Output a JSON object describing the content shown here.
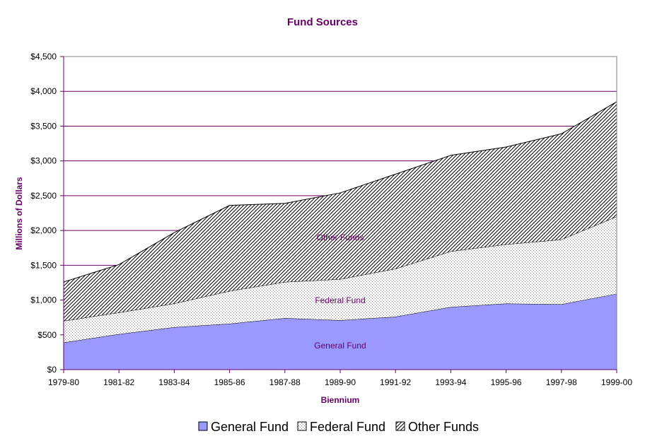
{
  "chart_data": {
    "type": "area",
    "stacked": true,
    "title": "Fund Sources",
    "xlabel": "Biennium",
    "ylabel": "Millions of Dollars",
    "categories": [
      "1979-80",
      "1981-82",
      "1983-84",
      "1985-86",
      "1987-88",
      "1989-90",
      "1991-92",
      "1993-94",
      "1995-96",
      "1997-98",
      "1999-00"
    ],
    "ylim": [
      0,
      4500
    ],
    "yticks": [
      0,
      500,
      1000,
      1500,
      2000,
      2500,
      3000,
      3500,
      4000,
      4500
    ],
    "ytick_labels": [
      "$0",
      "$500",
      "$1,000",
      "$1,500",
      "$2,000",
      "$2,500",
      "$3,000",
      "$3,500",
      "$4,000",
      "$4,500"
    ],
    "grid": "horizontal",
    "legend_position": "bottom",
    "series": [
      {
        "name": "General Fund",
        "values": [
          390,
          510,
          610,
          660,
          740,
          710,
          760,
          900,
          950,
          940,
          1090
        ]
      },
      {
        "name": "Federal Fund",
        "values": [
          310,
          310,
          340,
          470,
          520,
          590,
          690,
          800,
          850,
          930,
          1110
        ]
      },
      {
        "name": "Other Funds",
        "values": [
          560,
          690,
          1020,
          1230,
          1130,
          1240,
          1360,
          1380,
          1400,
          1520,
          1650
        ]
      }
    ],
    "annotations": [
      "Other Funds",
      "Federal Fund",
      "General Fund"
    ],
    "colors": {
      "general": "#9999ff",
      "text": "#660066",
      "gridline": "#660066",
      "axis": "#660066"
    }
  }
}
